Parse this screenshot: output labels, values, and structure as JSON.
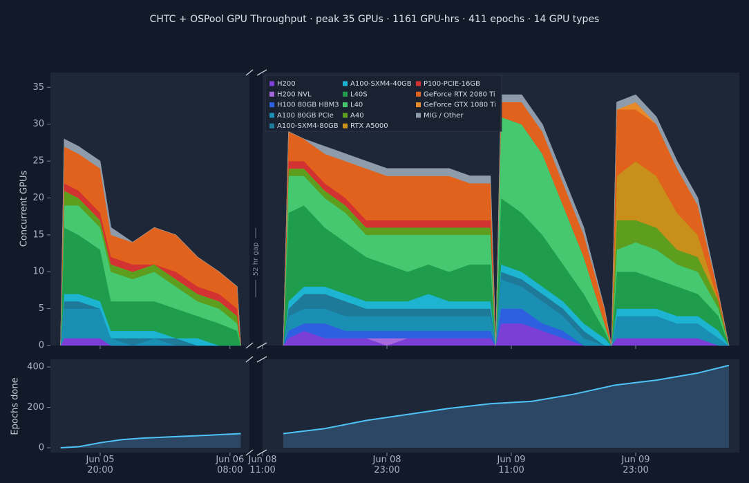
{
  "chart_data": [
    {
      "type": "stacked_area",
      "title": "CHTC + OSPool GPU Throughput  ·  peak 35 GPUs  ·  1161 GPU-hrs  ·  411 epochs  ·  14 GPU types",
      "ylabel": "Concurrent GPUs",
      "gap_label": "52 hr gap",
      "ylim": [
        0,
        37
      ],
      "yticks": [
        0,
        5,
        10,
        15,
        20,
        25,
        30,
        35
      ],
      "grid": false,
      "segments": [
        {
          "xlim": [
            "Jun 05 15:24",
            "Jun 06 09:48"
          ],
          "xticks": [
            "Jun 05 20:00",
            "Jun 06 08:00"
          ]
        },
        {
          "xlim": [
            "Jun 08 11:00",
            "Jun 10 09:00"
          ],
          "xticks": [
            "Jun 08 11:00",
            "Jun 08 23:00",
            "Jun 09 11:00",
            "Jun 09 23:00"
          ]
        }
      ],
      "x": [
        "Jun 05 16:20",
        "Jun 05 16:40",
        "Jun 05 18:00",
        "Jun 05 20:00",
        "Jun 05 21:00",
        "Jun 05 23:00",
        "Jun 06 01:00",
        "Jun 06 03:00",
        "Jun 06 05:00",
        "Jun 06 07:00",
        "Jun 06 08:40",
        "Jun 06 09:00",
        "Jun 08 13:00",
        "Jun 08 13:30",
        "Jun 08 15:00",
        "Jun 08 17:00",
        "Jun 08 19:00",
        "Jun 08 21:00",
        "Jun 08 23:00",
        "Jun 09 01:00",
        "Jun 09 03:00",
        "Jun 09 05:00",
        "Jun 09 07:00",
        "Jun 09 09:00",
        "Jun 09 09:30",
        "Jun 09 10:00",
        "Jun 09 12:00",
        "Jun 09 14:00",
        "Jun 09 16:00",
        "Jun 09 18:00",
        "Jun 09 20:00",
        "Jun 09 20:40",
        "Jun 09 21:10",
        "Jun 09 23:00",
        "Jun 10 01:00",
        "Jun 10 03:00",
        "Jun 10 05:00",
        "Jun 10 07:00",
        "Jun 10 08:00"
      ],
      "series": [
        {
          "name": "H200",
          "color": "#7b3fd6",
          "values": [
            0,
            1,
            1,
            1,
            0,
            0,
            0,
            0,
            0,
            0,
            0,
            0,
            0,
            1,
            2,
            1,
            1,
            1,
            0,
            1,
            1,
            1,
            1,
            1,
            0,
            3,
            3,
            2,
            1,
            0,
            0,
            0,
            1,
            1,
            1,
            1,
            1,
            0,
            0
          ]
        },
        {
          "name": "H200 NVL",
          "color": "#a569dd",
          "values": [
            0,
            0,
            0,
            0,
            0,
            0,
            0,
            0,
            0,
            0,
            0,
            0,
            0,
            0,
            0,
            0,
            0,
            0,
            1,
            0,
            0,
            0,
            0,
            0,
            0,
            0,
            0,
            0,
            0,
            0,
            0,
            0,
            0,
            0,
            0,
            0,
            0,
            0,
            0
          ]
        },
        {
          "name": "H100 80GB HBM3",
          "color": "#2d5fe0",
          "values": [
            0,
            0,
            0,
            0,
            0,
            0,
            0,
            0,
            0,
            0,
            0,
            0,
            0,
            1,
            1,
            2,
            1,
            1,
            1,
            1,
            1,
            1,
            1,
            1,
            0,
            2,
            2,
            1,
            1,
            0,
            0,
            0,
            0,
            0,
            0,
            0,
            0,
            0,
            0
          ]
        },
        {
          "name": "A100 80GB PCIe",
          "color": "#1a8fb3",
          "values": [
            0,
            4,
            4,
            4,
            1,
            0,
            1,
            0,
            0,
            0,
            0,
            0,
            0,
            2,
            2,
            2,
            2,
            2,
            2,
            2,
            2,
            2,
            2,
            2,
            0,
            4,
            3,
            3,
            2,
            1,
            0,
            0,
            3,
            3,
            3,
            2,
            2,
            1,
            0
          ]
        },
        {
          "name": "A100-SXM4-80GB",
          "color": "#1f7a99",
          "values": [
            0,
            1,
            1,
            0,
            0,
            1,
            0,
            1,
            0,
            0,
            0,
            0,
            0,
            1,
            2,
            2,
            2,
            1,
            1,
            1,
            1,
            1,
            1,
            1,
            0,
            1,
            1,
            1,
            1,
            1,
            0,
            0,
            0,
            0,
            0,
            0,
            0,
            0,
            0
          ]
        },
        {
          "name": "A100-SXM4-40GB",
          "color": "#1db4d2",
          "values": [
            0,
            1,
            1,
            1,
            1,
            1,
            1,
            0,
            1,
            0,
            0,
            0,
            0,
            1,
            1,
            1,
            1,
            1,
            1,
            1,
            2,
            1,
            1,
            1,
            0,
            1,
            1,
            1,
            1,
            1,
            1,
            0,
            1,
            1,
            1,
            1,
            1,
            1,
            0
          ]
        },
        {
          "name": "L40S",
          "color": "#1f9d4c",
          "values": [
            0,
            9,
            8,
            7,
            4,
            4,
            4,
            4,
            3,
            3,
            2,
            0,
            0,
            12,
            11,
            8,
            7,
            6,
            5,
            4,
            4,
            4,
            5,
            5,
            0,
            9,
            8,
            7,
            5,
            4,
            1,
            0,
            5,
            5,
            4,
            4,
            3,
            2,
            0
          ]
        },
        {
          "name": "L40",
          "color": "#45c86f",
          "values": [
            0,
            3,
            4,
            3,
            4,
            3,
            4,
            3,
            2,
            2,
            1,
            0,
            0,
            5,
            4,
            4,
            4,
            3,
            4,
            5,
            4,
            5,
            4,
            4,
            0,
            11,
            12,
            11,
            8,
            5,
            1,
            0,
            3,
            4,
            4,
            3,
            3,
            1,
            0
          ]
        },
        {
          "name": "A40",
          "color": "#5e9e1e",
          "values": [
            0,
            2,
            1,
            1,
            1,
            1,
            1,
            1,
            1,
            1,
            1,
            0,
            0,
            1,
            1,
            1,
            1,
            1,
            1,
            1,
            1,
            1,
            1,
            1,
            0,
            0,
            0,
            0,
            0,
            0,
            0,
            0,
            4,
            3,
            3,
            2,
            2,
            1,
            0
          ]
        },
        {
          "name": "RTX A5000",
          "color": "#c8901a",
          "values": [
            0,
            0,
            0,
            0,
            0,
            0,
            0,
            0,
            0,
            0,
            0,
            0,
            0,
            0,
            0,
            0,
            0,
            0,
            0,
            0,
            0,
            0,
            0,
            0,
            0,
            0,
            0,
            0,
            0,
            0,
            0,
            0,
            6,
            8,
            7,
            5,
            3,
            0,
            0
          ]
        },
        {
          "name": "P100-PCIE-16GB",
          "color": "#d33232",
          "values": [
            0,
            1,
            1,
            1,
            1,
            1,
            0,
            1,
            1,
            1,
            1,
            0,
            0,
            1,
            1,
            1,
            1,
            1,
            1,
            1,
            1,
            1,
            1,
            1,
            0,
            0,
            0,
            0,
            0,
            0,
            0,
            0,
            0,
            0,
            0,
            0,
            0,
            0,
            0
          ]
        },
        {
          "name": "GeForce RTX 2080 Ti",
          "color": "#e0621c",
          "values": [
            0,
            5,
            5,
            6,
            3,
            3,
            5,
            5,
            4,
            3,
            3,
            0,
            0,
            4,
            3,
            4,
            5,
            7,
            6,
            6,
            6,
            6,
            5,
            5,
            0,
            2,
            3,
            3,
            3,
            3,
            2,
            0,
            9,
            7,
            7,
            6,
            4,
            1,
            0
          ]
        },
        {
          "name": "GeForce GTX 1080 Ti",
          "color": "#e88a2a",
          "values": [
            0,
            0,
            0,
            0,
            0,
            0,
            0,
            0,
            0,
            0,
            0,
            0,
            0,
            0,
            0,
            0,
            0,
            0,
            0,
            0,
            0,
            0,
            0,
            0,
            0,
            0,
            0,
            0,
            0,
            0,
            0,
            0,
            0,
            1,
            0,
            0,
            0,
            0,
            0
          ]
        },
        {
          "name": "MIG / Other",
          "color": "#8d9bab",
          "values": [
            0,
            1,
            1,
            1,
            1,
            0,
            0,
            0,
            0,
            0,
            0,
            0,
            0,
            0,
            0,
            1,
            1,
            1,
            1,
            1,
            1,
            1,
            1,
            1,
            0,
            1,
            1,
            1,
            1,
            1,
            0,
            0,
            1,
            1,
            1,
            1,
            1,
            0,
            0
          ]
        }
      ]
    },
    {
      "type": "area_line",
      "ylabel": "Epochs done",
      "ylim": [
        -24,
        438
      ],
      "yticks": [
        0,
        200,
        400
      ],
      "grid": false,
      "color": "#4fc3f7",
      "segments": [
        {
          "xlim": [
            "Jun 05 15:24",
            "Jun 06 09:48"
          ],
          "xticks": [
            {
              "value": "Jun 05 20:00",
              "label": "Jun 05\n20:00"
            },
            {
              "value": "Jun 06 08:00",
              "label": "Jun 06\n08:00"
            }
          ]
        },
        {
          "xlim": [
            "Jun 08 11:00",
            "Jun 10 09:00"
          ],
          "xticks": [
            {
              "value": "Jun 08 11:00",
              "label": "Jun 08\n11:00"
            },
            {
              "value": "Jun 08 23:00",
              "label": "Jun 08\n23:00"
            },
            {
              "value": "Jun 09 11:00",
              "label": "Jun 09\n11:00"
            },
            {
              "value": "Jun 09 23:00",
              "label": "Jun 09\n23:00"
            }
          ]
        }
      ],
      "x": [
        "Jun 05 16:20",
        "Jun 05 18:00",
        "Jun 05 19:00",
        "Jun 05 20:00",
        "Jun 05 22:00",
        "Jun 06 00:00",
        "Jun 06 03:00",
        "Jun 06 06:00",
        "Jun 06 09:00",
        "Jun 08 13:00",
        "Jun 08 17:00",
        "Jun 08 21:00",
        "Jun 09 01:00",
        "Jun 09 05:00",
        "Jun 09 09:00",
        "Jun 09 13:00",
        "Jun 09 17:00",
        "Jun 09 21:00",
        "Jun 10 01:00",
        "Jun 10 05:00",
        "Jun 10 08:00"
      ],
      "values": [
        0,
        5,
        15,
        25,
        40,
        48,
        55,
        62,
        70,
        70,
        95,
        135,
        165,
        195,
        218,
        230,
        265,
        310,
        335,
        370,
        408
      ]
    }
  ]
}
